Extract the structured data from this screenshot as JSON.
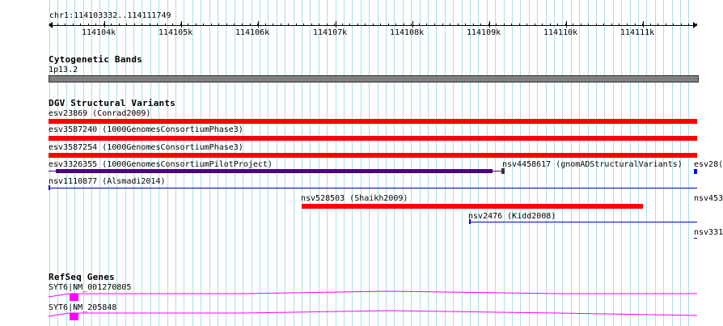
{
  "ruler": {
    "range_label": "chr1:114103332..114111749",
    "ticks": [
      "114104k",
      "114105k",
      "114106k",
      "114107k",
      "114108k",
      "114109k",
      "114110k",
      "114111k"
    ]
  },
  "tracks": {
    "cyto": {
      "title": "Cytogenetic Bands",
      "band_label": "1p13.2",
      "band_color": "#7f7f7f"
    },
    "dgv": {
      "title": "DGV Structural Variants",
      "gain_color": "#ff0000",
      "loss_color": "#4b0082",
      "line_color": "#0000cc",
      "features": [
        {
          "id": "esv23869",
          "label": "esv23869 (Conrad2009)"
        },
        {
          "id": "esv3587240",
          "label": "esv3587240 (1000GenomesConsortiumPhase3)"
        },
        {
          "id": "esv3587254",
          "label": "esv3587254 (1000GenomesConsortiumPhase3)"
        },
        {
          "id": "esv3326355",
          "label": "esv3326355 (1000GenomesConsortiumPilotProject)"
        },
        {
          "id": "nsv4458617",
          "label": "nsv4458617 (gnomADStructuralVariants)"
        },
        {
          "id": "esv28",
          "label": "esv28("
        },
        {
          "id": "nsv1110877",
          "label": "nsv1110877 (Alsmadi2014)"
        },
        {
          "id": "nsv528503",
          "label": "nsv528503 (Shaikh2009)"
        },
        {
          "id": "nsv45",
          "label": "nsv453"
        },
        {
          "id": "nsv2476",
          "label": "nsv2476 (Kidd2008)"
        },
        {
          "id": "nsv33",
          "label": "nsv331"
        }
      ]
    },
    "refseq": {
      "title": "RefSeq Genes",
      "exon_color": "#ff00ff",
      "intron_color": "#ff00ff",
      "genes": [
        {
          "label": "SYT6|NM_001270805"
        },
        {
          "label": "SYT6|NM_205848"
        }
      ]
    }
  }
}
